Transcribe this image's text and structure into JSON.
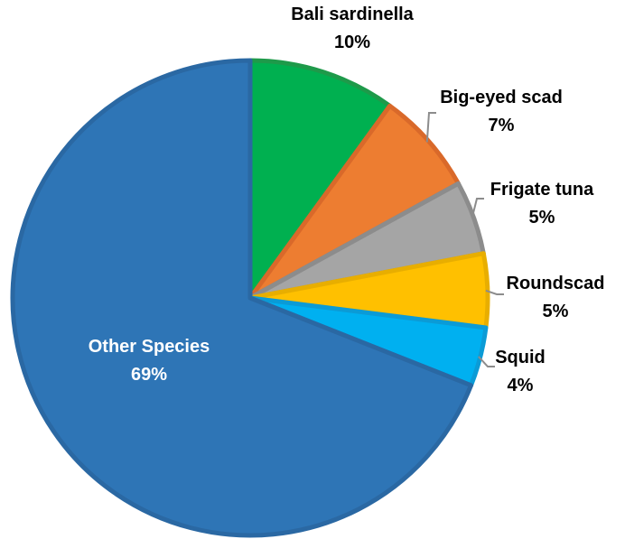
{
  "chart_data": {
    "type": "pie",
    "start_angle_deg": 0,
    "direction": "clockwise",
    "slices": [
      {
        "label": "Bali sardinella",
        "percent_label": "10%",
        "value": 10,
        "color": "#00B050",
        "stroke": "#1E9A4A",
        "label_color": "#000000"
      },
      {
        "label": "Big-eyed scad",
        "percent_label": "7%",
        "value": 7,
        "color": "#ED7D31",
        "stroke": "#D9692A",
        "label_color": "#000000"
      },
      {
        "label": "Frigate tuna",
        "percent_label": "5%",
        "value": 5,
        "color": "#A5A5A5",
        "stroke": "#8C8C8C",
        "label_color": "#000000"
      },
      {
        "label": "Roundscad",
        "percent_label": "5%",
        "value": 5,
        "color": "#FFC000",
        "stroke": "#E8AE00",
        "label_color": "#000000"
      },
      {
        "label": "Squid",
        "percent_label": "4%",
        "value": 4,
        "color": "#00B0F0",
        "stroke": "#0B9BD6",
        "label_color": "#000000"
      },
      {
        "label": "Other Species",
        "percent_label": "69%",
        "value": 69,
        "color": "#2E75B6",
        "stroke": "#2A68A3",
        "label_color": "#FFFFFF"
      }
    ]
  }
}
